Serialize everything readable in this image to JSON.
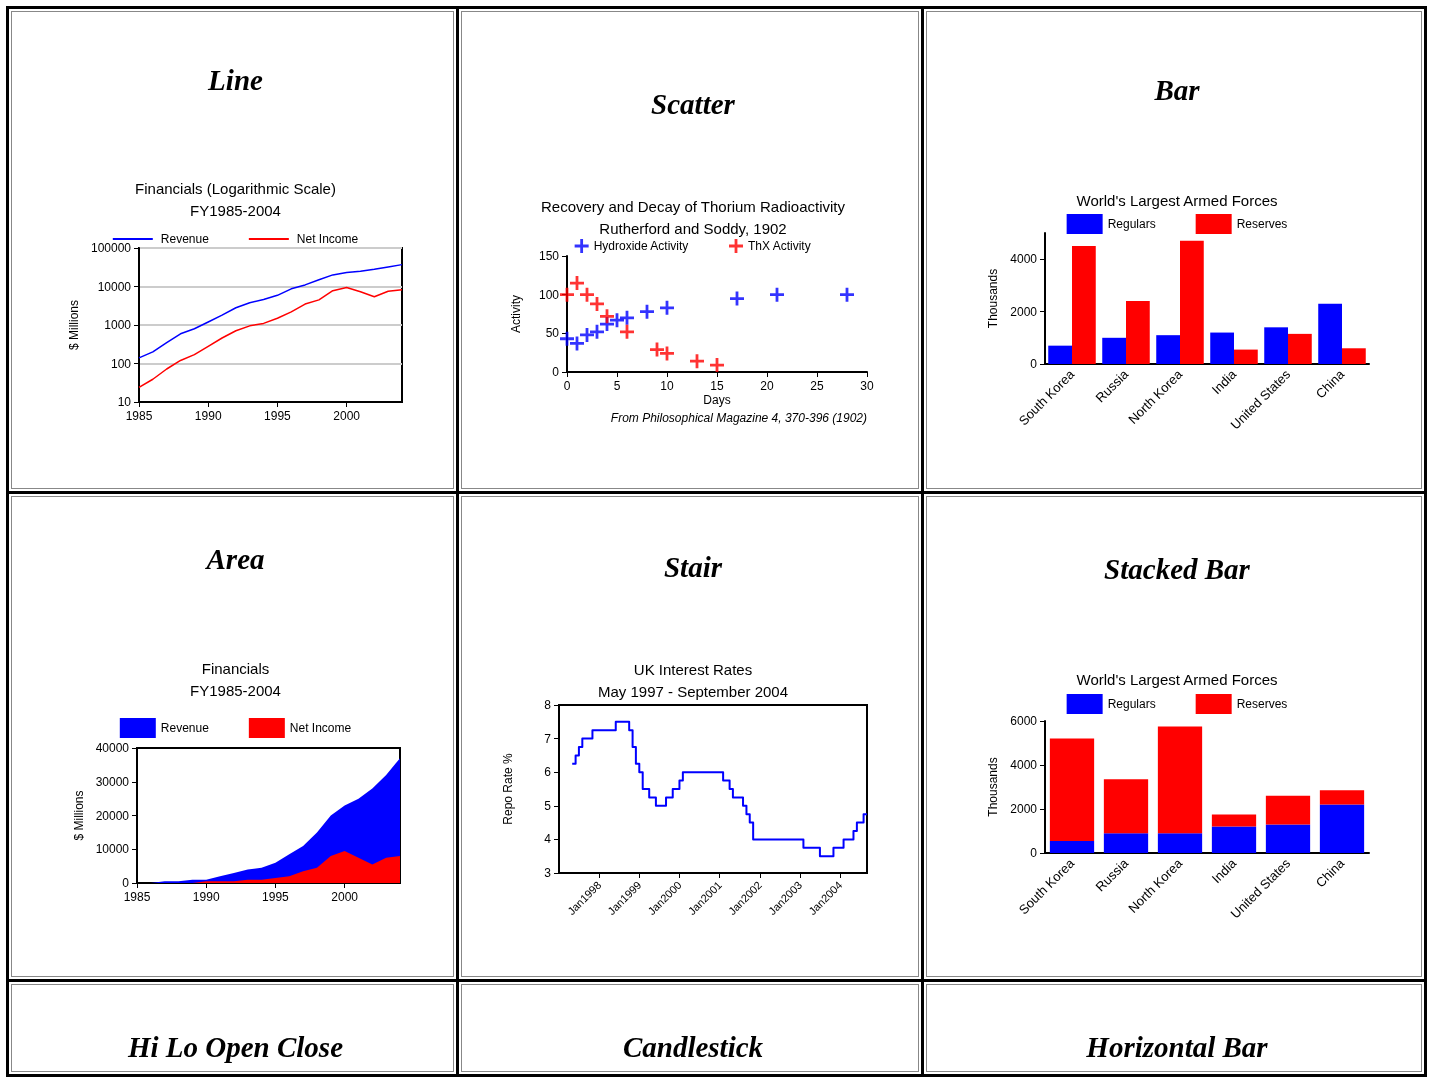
{
  "chart_data": [
    {
      "type": "line",
      "title": "Line",
      "subtitle": "Financials (Logarithmic Scale)\nFY1985-2004",
      "ylabel": "$ Millions",
      "log": "y",
      "grid": "y",
      "legend": "top",
      "marker": "none",
      "line_style": "solid",
      "x": [
        1985,
        1986,
        1987,
        1988,
        1989,
        1990,
        1991,
        1992,
        1993,
        1994,
        1995,
        1996,
        1997,
        1998,
        1999,
        2000,
        2001,
        2002,
        2003,
        2004
      ],
      "xlim": [
        1985,
        2004
      ],
      "xticks": [
        1985,
        1990,
        1995,
        2000
      ],
      "ylim": [
        10,
        100000
      ],
      "yticks": [
        10,
        100,
        1000,
        10000,
        100000
      ],
      "series": [
        {
          "name": "Revenue",
          "color": "#0000ff",
          "values": [
            140,
            200,
            350,
            590,
            800,
            1200,
            1800,
            2800,
            3800,
            4600,
            5900,
            8700,
            11000,
            15000,
            20000,
            23000,
            25000,
            28000,
            32000,
            37000
          ]
        },
        {
          "name": "Net Income",
          "color": "#ff0000",
          "values": [
            24,
            39,
            72,
            120,
            170,
            280,
            460,
            710,
            950,
            1100,
            1500,
            2200,
            3500,
            4500,
            7800,
            9400,
            7300,
            5400,
            7500,
            8200
          ]
        }
      ]
    },
    {
      "type": "scatter",
      "title": "Scatter",
      "subtitle": "Recovery and Decay of Thorium Radioactivity\nRutherford and Soddy, 1902",
      "xlabel": "Days",
      "ylabel": "Activity",
      "legend": "top",
      "marker": "cross",
      "xlim": [
        0,
        30
      ],
      "xticks": [
        0,
        5,
        10,
        15,
        20,
        25,
        30
      ],
      "ylim": [
        0,
        150
      ],
      "yticks": [
        0,
        50,
        100,
        150
      ],
      "annotations": [
        "From Philosophical Magazine 4, 370-396 (1902)"
      ],
      "series": [
        {
          "name": "Hydroxide Activity",
          "color": "#0000ff",
          "x": [
            0,
            1,
            2,
            3,
            4,
            5,
            6,
            8,
            10,
            17,
            21,
            28
          ],
          "values": [
            43,
            37,
            48,
            52,
            62,
            67,
            70,
            78,
            83,
            95,
            100,
            100
          ]
        },
        {
          "name": "ThX Activity",
          "color": "#ff0000",
          "x": [
            0,
            1,
            2,
            3,
            4,
            6,
            9,
            10,
            13,
            15
          ],
          "values": [
            100,
            115,
            100,
            88,
            72,
            52,
            29,
            24,
            14,
            9
          ]
        }
      ]
    },
    {
      "type": "bar",
      "title": "Bar",
      "subtitle": "World's Largest Armed Forces",
      "ylabel": "Thousands",
      "legend": "top",
      "categories": [
        "South Korea",
        "Russia",
        "North Korea",
        "India",
        "United States",
        "China"
      ],
      "ylim": [
        0,
        5000
      ],
      "yticks": [
        0,
        2000,
        4000
      ],
      "series": [
        {
          "name": "Regulars",
          "color": "#0000ff",
          "values": [
            700,
            1000,
            1100,
            1200,
            1400,
            2300
          ]
        },
        {
          "name": "Reserves",
          "color": "#ff0000",
          "values": [
            4500,
            2400,
            4700,
            550,
            1150,
            600
          ]
        }
      ]
    },
    {
      "type": "area",
      "title": "Area",
      "subtitle": "Financials\nFY1985-2004",
      "ylabel": "$ Millions",
      "legend": "top",
      "x": [
        1985,
        1986,
        1987,
        1988,
        1989,
        1990,
        1991,
        1992,
        1993,
        1994,
        1995,
        1996,
        1997,
        1998,
        1999,
        2000,
        2001,
        2002,
        2003,
        2004
      ],
      "xlim": [
        1985,
        2004
      ],
      "xticks": [
        1985,
        1990,
        1995,
        2000
      ],
      "ylim": [
        0,
        40000
      ],
      "yticks": [
        0,
        10000,
        20000,
        30000,
        40000
      ],
      "series": [
        {
          "name": "Revenue",
          "color": "#0000ff",
          "values": [
            0,
            0,
            500,
            500,
            1000,
            1000,
            2000,
            3000,
            4000,
            4500,
            6000,
            8500,
            11000,
            15000,
            20000,
            23000,
            25000,
            28000,
            32000,
            37000
          ]
        },
        {
          "name": "Net Income",
          "color": "#ff0000",
          "values": [
            0,
            0,
            0,
            0,
            0,
            500,
            500,
            500,
            1000,
            1000,
            1500,
            2000,
            3500,
            4500,
            8000,
            9500,
            7500,
            5500,
            7500,
            8000
          ]
        }
      ]
    },
    {
      "type": "step",
      "title": "Stair",
      "subtitle": "UK Interest Rates\nMay 1997 - September 2004",
      "ylabel": "Repo Rate %",
      "line_style": "solid",
      "x": [
        "1997-05",
        "1997-06",
        "1997-07",
        "1997-08",
        "1997-11",
        "1998-06",
        "1998-10",
        "1998-11",
        "1998-12",
        "1999-01",
        "1999-02",
        "1999-04",
        "1999-06",
        "1999-09",
        "1999-11",
        "2000-01",
        "2000-02",
        "2001-02",
        "2001-04",
        "2001-05",
        "2001-08",
        "2001-09",
        "2001-10",
        "2001-11",
        "2003-02",
        "2003-07",
        "2003-11",
        "2004-02",
        "2004-05",
        "2004-06",
        "2004-08",
        "2004-09"
      ],
      "xlim": [
        "1997-01",
        "2004-09"
      ],
      "xticks": [
        {
          "value": "1998-01",
          "label": "Jan1998"
        },
        {
          "value": "1999-01",
          "label": "Jan1999"
        },
        {
          "value": "2000-01",
          "label": "Jan2000"
        },
        {
          "value": "2001-01",
          "label": "Jan2001"
        },
        {
          "value": "2002-01",
          "label": "Jan2002"
        },
        {
          "value": "2003-01",
          "label": "Jan2003"
        },
        {
          "value": "2004-01",
          "label": "Jan2004"
        }
      ],
      "ylim": [
        3,
        8
      ],
      "yticks": [
        3,
        4,
        5,
        6,
        7,
        8
      ],
      "series": [
        {
          "color": "#0000ff",
          "values": [
            6.25,
            6.5,
            6.75,
            7.0,
            7.25,
            7.5,
            7.25,
            6.75,
            6.25,
            6.0,
            5.5,
            5.25,
            5.0,
            5.25,
            5.5,
            5.75,
            6.0,
            5.75,
            5.5,
            5.25,
            5.0,
            4.75,
            4.5,
            4.0,
            3.75,
            3.5,
            3.75,
            4.0,
            4.25,
            4.5,
            4.75,
            4.75
          ]
        }
      ]
    },
    {
      "type": "bar",
      "title": "Stacked Bar",
      "subtitle": "World's Largest Armed Forces",
      "ylabel": "Thousands",
      "legend": "top",
      "stacked": true,
      "categories": [
        "South Korea",
        "Russia",
        "North Korea",
        "India",
        "United States",
        "China"
      ],
      "ylim": [
        0,
        6000
      ],
      "yticks": [
        0,
        2000,
        4000,
        6000
      ],
      "series": [
        {
          "name": "Regulars",
          "color": "#0000ff",
          "values": [
            550,
            900,
            900,
            1200,
            1300,
            2200
          ]
        },
        {
          "name": "Reserves",
          "color": "#ff0000",
          "values": [
            4650,
            2450,
            4850,
            550,
            1300,
            650
          ]
        }
      ]
    },
    {
      "type": "other",
      "title": "Hi Lo Open Close"
    },
    {
      "type": "other",
      "title": "Candlestick"
    },
    {
      "type": "other",
      "title": "Horizontal Bar"
    }
  ]
}
